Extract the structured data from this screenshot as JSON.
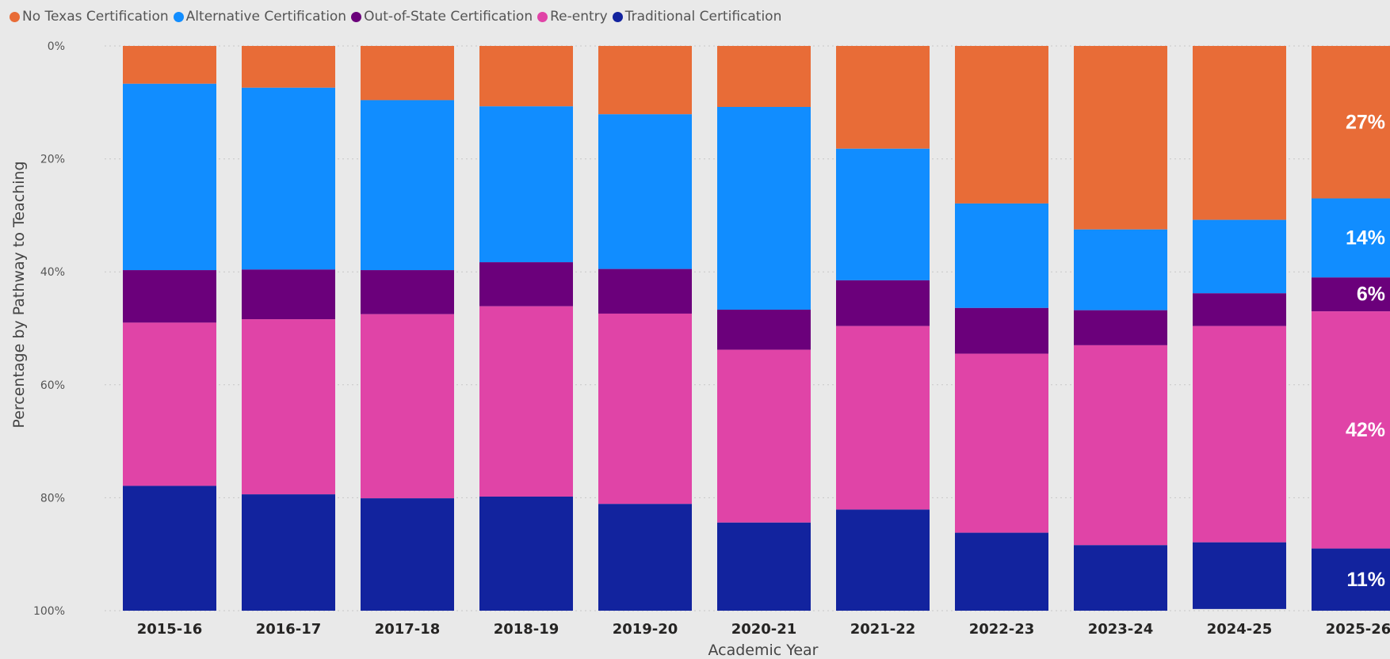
{
  "chart_data": {
    "type": "bar",
    "stacked": true,
    "orientation": "vertical",
    "title": "",
    "xlabel": "Academic Year",
    "ylabel": "Percentage by Pathway to Teaching",
    "ylim": [
      0,
      100
    ],
    "y_axis_inverted": true,
    "y_ticks": [
      "0%",
      "20%",
      "40%",
      "60%",
      "80%",
      "100%"
    ],
    "y_tick_values": [
      0,
      20,
      40,
      60,
      80,
      100
    ],
    "grid": true,
    "legend_position": "top-left",
    "categories": [
      "2015-16",
      "2016-17",
      "2017-18",
      "2018-19",
      "2019-20",
      "2020-21",
      "2021-22",
      "2022-23",
      "2023-24",
      "2024-25",
      "2025-26"
    ],
    "series": [
      {
        "name": "No Texas Certification",
        "color": "#e86c37",
        "values": [
          6.7,
          7.4,
          9.6,
          10.7,
          12.1,
          10.8,
          18.2,
          27.9,
          32.5,
          30.8,
          27
        ]
      },
      {
        "name": "Alternative Certification",
        "color": "#118dff",
        "values": [
          33,
          32.2,
          30.1,
          27.6,
          27.4,
          35.9,
          23.3,
          18.5,
          14.3,
          13,
          14
        ]
      },
      {
        "name": "Out-of-State Certification",
        "color": "#6b007b",
        "values": [
          9.3,
          8.8,
          7.8,
          7.8,
          7.9,
          7.1,
          8.1,
          8.1,
          6.2,
          5.8,
          6
        ]
      },
      {
        "name": "Re-entry",
        "color": "#e044a7",
        "values": [
          28.9,
          31,
          32.6,
          33.7,
          33.7,
          30.6,
          32.5,
          31.7,
          35.4,
          38.3,
          42
        ]
      },
      {
        "name": "Traditional Certification",
        "color": "#12239e",
        "values": [
          22.1,
          20.6,
          19.9,
          20.2,
          18.9,
          15.6,
          17.9,
          13.8,
          11.6,
          11.8,
          11
        ]
      }
    ],
    "data_labels": [
      {
        "category": "2025-26",
        "series": "No Texas Certification",
        "text": "27%"
      },
      {
        "category": "2025-26",
        "series": "Alternative Certification",
        "text": "14%"
      },
      {
        "category": "2025-26",
        "series": "Out-of-State Certification",
        "text": "6%"
      },
      {
        "category": "2025-26",
        "series": "Re-entry",
        "text": "42%"
      },
      {
        "category": "2025-26",
        "series": "Traditional Certification",
        "text": "11%"
      }
    ]
  }
}
